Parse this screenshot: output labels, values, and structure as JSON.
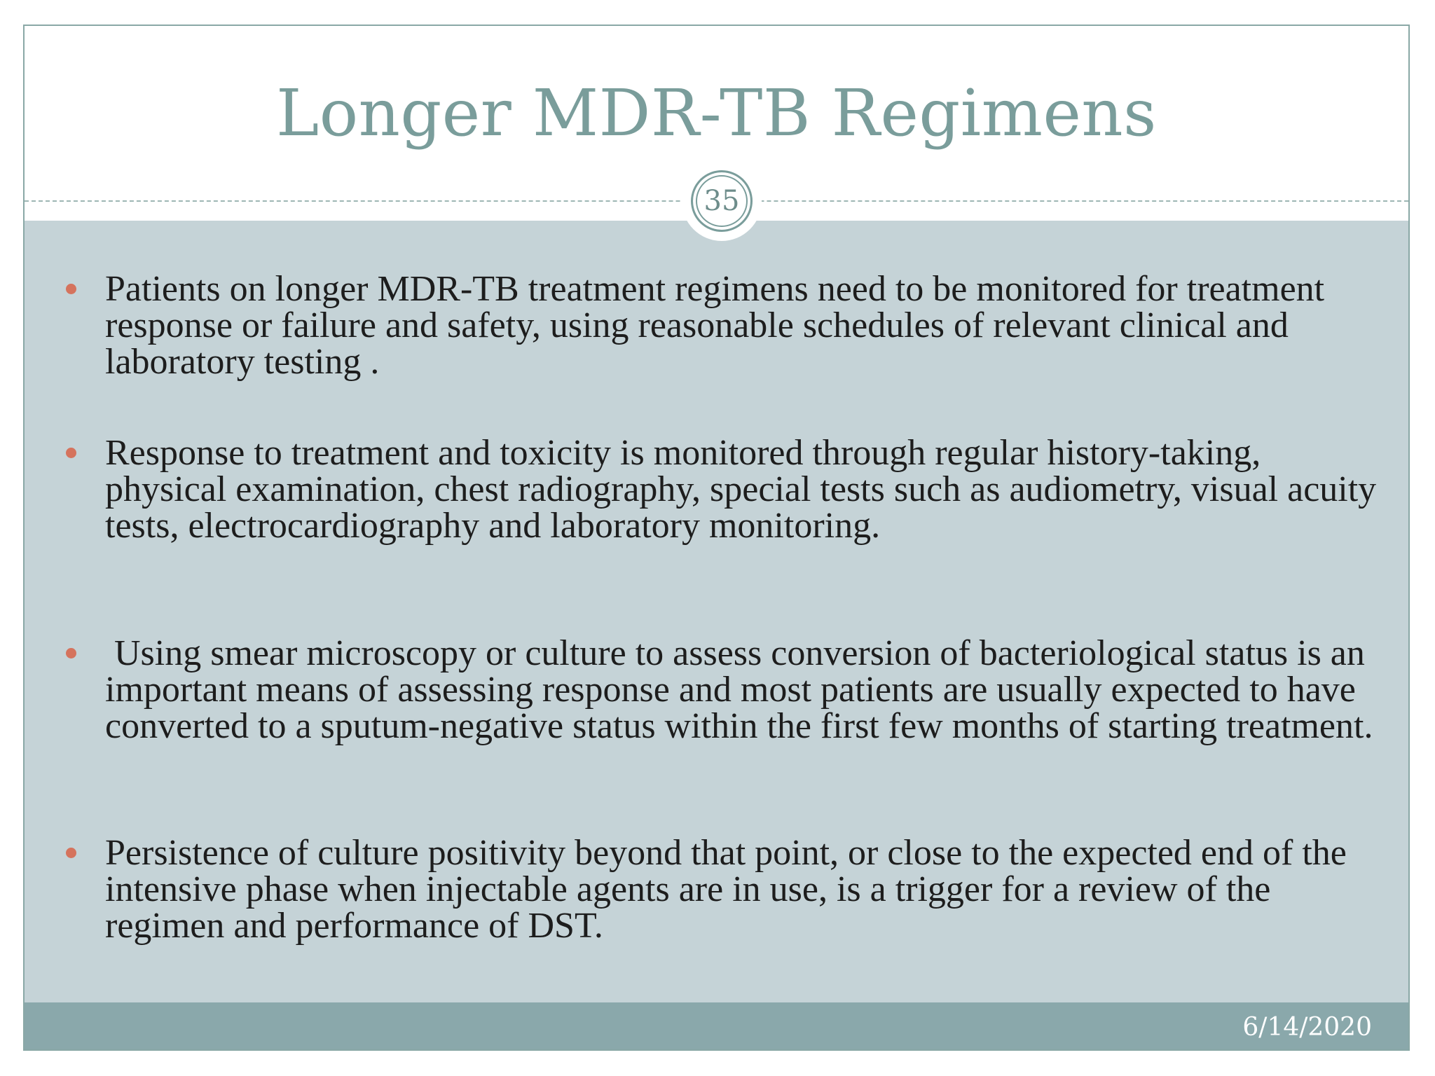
{
  "slide": {
    "title": "Longer MDR-TB Regimens",
    "slide_number": "35",
    "bullets": [
      {
        "text": "Patients on longer MDR-TB treatment regimens need to be monitored for treatment response or failure and safety, using reasonable schedules of relevant clinical and laboratory testing ."
      },
      {
        "text": "Response to treatment and toxicity is monitored through regular history-taking, physical examination, chest radiography, special tests such as audiometry, visual acuity tests, electrocardiography and laboratory monitoring."
      },
      {
        "text": " Using smear microscopy or culture to assess conversion of bacteriological status is an important means of assessing response and most patients are usually expected to have converted to a sputum-negative status within the first few months of starting treatment."
      },
      {
        "text": "Persistence of culture positivity beyond that point, or close to the expected end of the intensive phase when injectable agents are in use, is a trigger for a review of the regimen and performance of DST."
      }
    ],
    "footer_date": "6/14/2020"
  },
  "colors": {
    "title": "#7a9d9b",
    "body_background": "#c5d3d7",
    "bullet_marker": "#d5735d",
    "footer_background": "#8aa8ab",
    "footer_text": "#ffffff",
    "body_text": "#1d1d1d"
  }
}
